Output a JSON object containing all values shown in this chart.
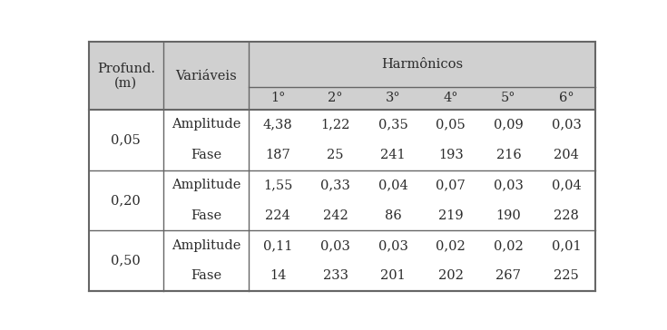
{
  "col_header1": "Profund.\n(m)",
  "col_header2": "Variáveis",
  "harmonicos": "Harmônicos",
  "harmonicos_cols": [
    "1°",
    "2°",
    "3°",
    "4°",
    "5°",
    "6°"
  ],
  "rows": [
    {
      "profund": "0,05",
      "var": "Amplitude",
      "vals": [
        "4,38",
        "1,22",
        "0,35",
        "0,05",
        "0,09",
        "0,03"
      ]
    },
    {
      "profund": "",
      "var": "Fase",
      "vals": [
        "187",
        "25",
        "241",
        "193",
        "216",
        "204"
      ]
    },
    {
      "profund": "0,20",
      "var": "Amplitude",
      "vals": [
        "1,55",
        "0,33",
        "0,04",
        "0,07",
        "0,03",
        "0,04"
      ]
    },
    {
      "profund": "",
      "var": "Fase",
      "vals": [
        "224",
        "242",
        "86",
        "219",
        "190",
        "228"
      ]
    },
    {
      "profund": "0,50",
      "var": "Amplitude",
      "vals": [
        "0,11",
        "0,03",
        "0,03",
        "0,02",
        "0,02",
        "0,01"
      ]
    },
    {
      "profund": "",
      "var": "Fase",
      "vals": [
        "14",
        "233",
        "201",
        "202",
        "267",
        "225"
      ]
    }
  ],
  "bg_header": "#d0d0d0",
  "bg_white": "#ffffff",
  "text_color": "#2b2b2b",
  "line_color": "#666666",
  "font_size": 10.5,
  "font_family": "DejaVu Serif"
}
